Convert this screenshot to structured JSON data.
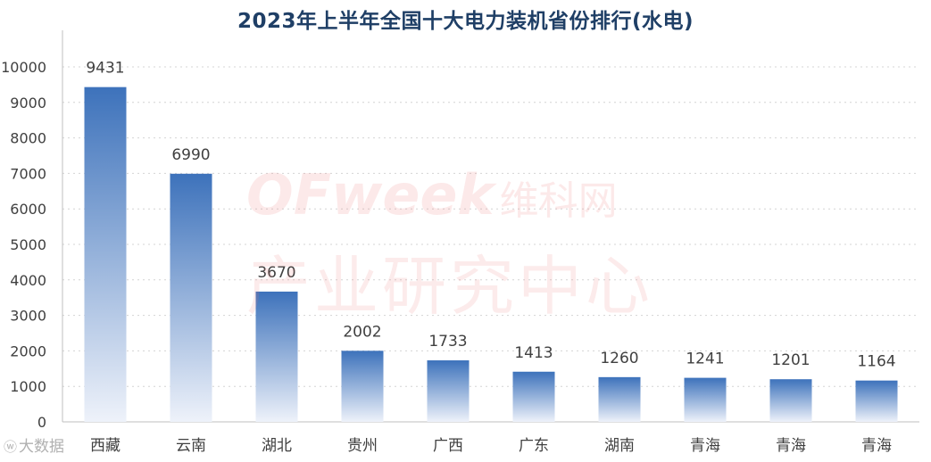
{
  "title": "2023年上半年全国十大电力装机省份排行(水电)",
  "watermark": {
    "logo": "OFweek",
    "logo_cn": "维科网",
    "text": "产业研究中心"
  },
  "corner_mark": {
    "icon": "weibo-icon",
    "text": "大数据"
  },
  "colors": {
    "bar_top": "#3d72bb",
    "bar_bottom": "#eef2fa",
    "axis": "#bfbfbf",
    "grid": "#d4d4d4",
    "label": "#404040",
    "title": "#1f3f66"
  },
  "chart_data": {
    "type": "bar",
    "title": "2023年上半年全国十大电力装机省份排行(水电)",
    "categories": [
      "西藏",
      "云南",
      "湖北",
      "贵州",
      "广西",
      "广东",
      "湖南",
      "青海",
      "青海",
      "青海"
    ],
    "values": [
      9431,
      6990,
      3670,
      2002,
      1733,
      1413,
      1260,
      1241,
      1201,
      1164
    ],
    "data_labels": [
      "9431",
      "6990",
      "3670",
      "2002",
      "1733",
      "1413",
      "1260",
      "1241",
      "1201",
      "1164"
    ],
    "y_ticks": [
      "0",
      "1000",
      "2000",
      "3000",
      "4000",
      "5000",
      "6000",
      "7000",
      "8000",
      "9000",
      "10000"
    ],
    "ylim": [
      0,
      10000
    ],
    "xlabel": "",
    "ylabel": "",
    "grid": true,
    "grid_style": "dotted",
    "legend": "none"
  }
}
